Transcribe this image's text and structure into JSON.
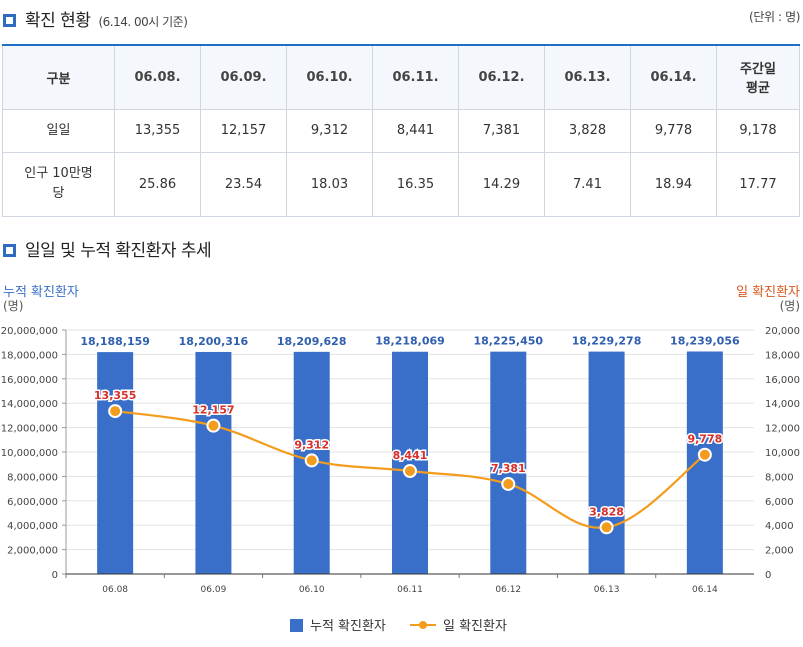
{
  "section1": {
    "title": "확진 현황",
    "subtitle": "(6.14. 00시 기준)",
    "unit": "(단위 : 명)"
  },
  "table": {
    "corner": "구분",
    "dates": [
      "06.08.",
      "06.09.",
      "06.10.",
      "06.11.",
      "06.12.",
      "06.13.",
      "06.14."
    ],
    "avg_header_line1": "주간일",
    "avg_header_line2": "평균",
    "rows": [
      {
        "label": "일일",
        "values": [
          "13,355",
          "12,157",
          "9,312",
          "8,441",
          "7,381",
          "3,828",
          "9,778"
        ],
        "avg": "9,178"
      },
      {
        "label_line1": "인구 10만명",
        "label_line2": "당",
        "values": [
          "25.86",
          "23.54",
          "18.03",
          "16.35",
          "14.29",
          "7.41",
          "18.94"
        ],
        "avg": "17.77"
      }
    ]
  },
  "section2": {
    "title": "일일 및 누적 확진환자 추세"
  },
  "chart_data": {
    "type": "bar+line",
    "categories": [
      "06.08",
      "06.09",
      "06.10",
      "06.11",
      "06.12",
      "06.13",
      "06.14"
    ],
    "series": [
      {
        "name": "누적 확진환자",
        "type": "bar",
        "axis": "left",
        "color": "#3a6fc9",
        "values": [
          18188159,
          18200316,
          18209628,
          18218069,
          18225450,
          18229278,
          18239056
        ],
        "labels": [
          "18,188,159",
          "18,200,316",
          "18,209,628",
          "18,218,069",
          "18,225,450",
          "18,229,278",
          "18,239,056"
        ]
      },
      {
        "name": "일 확진환자",
        "type": "line",
        "axis": "right",
        "color": "#f39c1d",
        "values": [
          13355,
          12157,
          9312,
          8441,
          7381,
          3828,
          9778
        ],
        "labels": [
          "13,355",
          "12,157",
          "9,312",
          "8,441",
          "7,381",
          "3,828",
          "9,778"
        ]
      }
    ],
    "left_axis": {
      "title": "누적 확진환자",
      "unit": "(명)",
      "range": [
        0,
        20000000
      ],
      "ticks": [
        "0",
        "2,000,000",
        "4,000,000",
        "6,000,000",
        "8,000,000",
        "10,000,000",
        "12,000,000",
        "14,000,000",
        "16,000,000",
        "18,000,000",
        "20,000,000"
      ]
    },
    "right_axis": {
      "title": "일 확진환자",
      "unit": "(명)",
      "range": [
        0,
        20000
      ],
      "ticks": [
        "0",
        "2,000",
        "4,000",
        "6,000",
        "8,000",
        "10,000",
        "12,000",
        "14,000",
        "16,000",
        "18,000",
        "20,000"
      ]
    },
    "legend": [
      "누적 확진환자",
      "일 확진환자"
    ],
    "legend_position": "bottom-center",
    "grid": true
  }
}
